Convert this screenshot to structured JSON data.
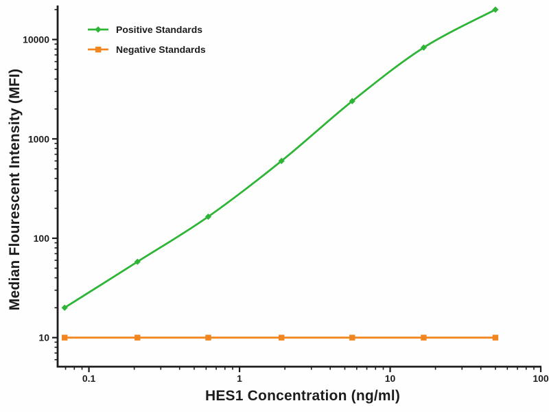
{
  "chart_data": {
    "type": "line",
    "title": "",
    "xlabel": "HES1 Concentration (ng/ml)",
    "ylabel": "Median Flourescent Intensity (MFI)",
    "x_scale": "log",
    "y_scale": "log",
    "x_range": [
      0.062,
      100
    ],
    "y_range": [
      5.1,
      22000
    ],
    "grid": false,
    "legend_position": "top-left",
    "axis_color": "#1c1c1c",
    "x": [
      0.069,
      0.21,
      0.62,
      1.9,
      5.6,
      16.7,
      50
    ],
    "series": [
      {
        "name": "Positive Standards",
        "color": "#2eb437",
        "marker": "diamond",
        "smooth": true,
        "values": [
          20,
          58,
          165,
          600,
          2400,
          8300,
          20000
        ]
      },
      {
        "name": "Negative Standards",
        "color": "#f1861f",
        "marker": "square",
        "smooth": false,
        "values": [
          10,
          10,
          10,
          10,
          10,
          10,
          10
        ]
      }
    ],
    "x_ticks": [
      {
        "value": 0.1,
        "label": "0.1"
      },
      {
        "value": 1,
        "label": "1"
      },
      {
        "value": 10,
        "label": "10"
      },
      {
        "value": 100,
        "label": "100"
      }
    ],
    "y_ticks": [
      {
        "value": 10,
        "label": "10"
      },
      {
        "value": 100,
        "label": "100"
      },
      {
        "value": 1000,
        "label": "1000"
      },
      {
        "value": 10000,
        "label": "10000"
      }
    ]
  }
}
